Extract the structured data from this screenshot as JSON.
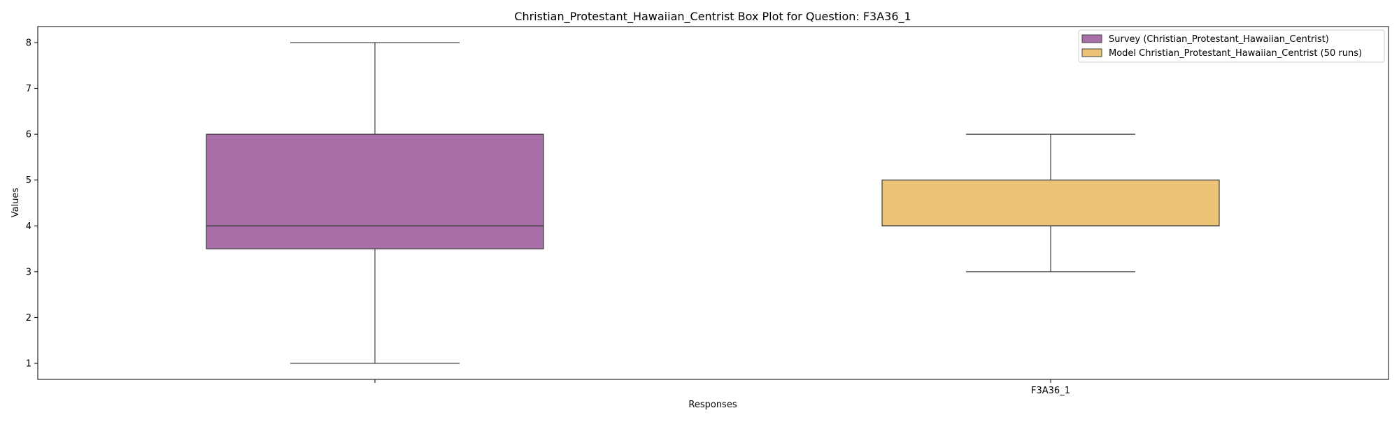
{
  "chart_data": {
    "type": "box",
    "title": "Christian_Protestant_Hawaiian_Centrist Box Plot for Question: F3A36_1",
    "xlabel": "Responses",
    "ylabel": "Values",
    "ylim": [
      0.65,
      8.35
    ],
    "yticks": [
      1,
      2,
      3,
      4,
      5,
      6,
      7,
      8
    ],
    "x_tick_labels": [
      "",
      "F3A36_1"
    ],
    "grid": false,
    "legend_position": "top-right",
    "series": [
      {
        "name": "Survey (Christian_Protestant_Hawaiian_Centrist)",
        "color": "#a86fa9",
        "whisker_low": 1,
        "q1": 3.5,
        "median": 4,
        "q3": 6,
        "whisker_high": 8
      },
      {
        "name": "Model Christian_Protestant_Hawaiian_Centrist (50 runs)",
        "color": "#ecc478",
        "whisker_low": 3,
        "q1": 4,
        "median": 4,
        "q3": 5,
        "whisker_high": 6
      }
    ]
  }
}
